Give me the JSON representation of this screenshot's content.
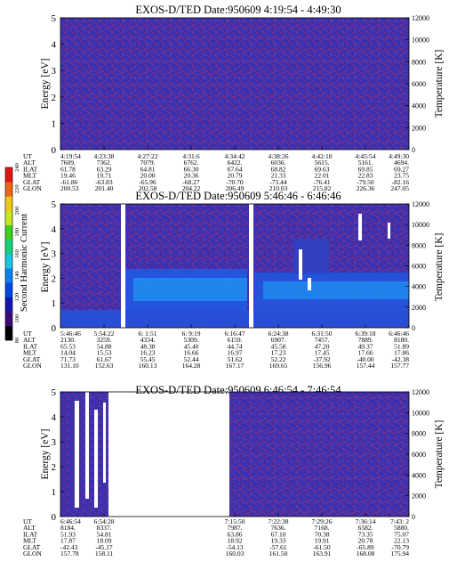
{
  "colorbar": {
    "label": "Second Harmonic Current",
    "ticks": [
      "80",
      "100",
      "120",
      "140",
      "160",
      "180",
      "200",
      "220",
      "240"
    ],
    "colors": [
      "#000000",
      "#3b0a7a",
      "#1414b4",
      "#0046e6",
      "#0a7ff0",
      "#14c8e6",
      "#14d27d",
      "#3cd21e",
      "#c8e61e",
      "#f0c814",
      "#f06414",
      "#e61414"
    ]
  },
  "panels": [
    {
      "title": "EXOS-D/TED   Date:950609  4:19:54 - 4:49:30",
      "ylabel": "Energy [eV]",
      "ylabel_right": "Temperature [K]",
      "y_ticks": [
        "0",
        "1",
        "2",
        "3",
        "4",
        "5"
      ],
      "y_right_ticks": [
        "0",
        "2000",
        "4000",
        "6000",
        "8000",
        "10000",
        "12000"
      ],
      "orbit": {
        "labels": [
          "UT",
          "ALT",
          "ILAT",
          "MLT",
          "GLAT",
          "GLON"
        ],
        "columns": [
          [
            "4:19:54",
            "7609.",
            "61.78",
            "19.46",
            "-61.86",
            "200.53"
          ],
          [
            "4:23:38",
            "7362.",
            "63.29",
            "19.71",
            "-63.83",
            "201.40"
          ],
          [
            "4:27:22",
            "7079.",
            "64.81",
            "20.00",
            "-65.96",
            "202.58"
          ],
          [
            "4:31:6",
            "6762.",
            "66.30",
            "20.36",
            "-68.27",
            "204.22"
          ],
          [
            "4:34:42",
            "6422.",
            "67.64",
            "20.79",
            "-70.70",
            "206.49"
          ],
          [
            "4:38:26",
            "6036.",
            "68.82",
            "21.33",
            "-73.44",
            "210.03"
          ],
          [
            "4:42:10",
            "5615.",
            "69.63",
            "22.01",
            "-76.41",
            "215.82"
          ],
          [
            "4:45:54",
            "5161.",
            "69.85",
            "22.83",
            "-79.50",
            "226.36"
          ],
          [
            "4:49:30",
            "4694.",
            "69.27",
            "23.75",
            "-82.16",
            "247.05"
          ]
        ]
      }
    },
    {
      "title": "EXOS-D/TED   Date:950609  5:46:46 - 6:46:46",
      "ylabel": "Energy [eV]",
      "ylabel_right": "Temperature [K]",
      "y_ticks": [
        "0",
        "1",
        "2",
        "3",
        "4",
        "5"
      ],
      "y_right_ticks": [
        "0",
        "2000",
        "4000",
        "6000",
        "8000",
        "10000",
        "12000"
      ],
      "orbit": {
        "labels": [
          "UT",
          "ALT",
          "ILAT",
          "MLT",
          "GLAT",
          "GLON"
        ],
        "columns": [
          [
            "5:46:46",
            "2130.",
            "65.53",
            "14.04",
            "71.73",
            "131.10"
          ],
          [
            "5:54:22",
            "3259.",
            "54.88",
            "15.53",
            "61.67",
            "152.63"
          ],
          [
            "6: 1:51",
            "4334.",
            "48.38",
            "16.23",
            "55.45",
            "160.13"
          ],
          [
            "6: 9:19",
            "5309.",
            "45.40",
            "16.66",
            "52.44",
            "164.28"
          ],
          [
            "6:16:47",
            "6159.",
            "44.74",
            "16.97",
            "51.62",
            "167.17"
          ],
          [
            "6:24:38",
            "6907.",
            "45.58",
            "17.23",
            "52.22",
            "169.65"
          ],
          [
            "6:31:50",
            "7457.",
            "47.20",
            "17.45",
            "-37.92",
            "156.96"
          ],
          [
            "6:39:18",
            "7889.",
            "49.37",
            "17.66",
            "-40.00",
            "157.44"
          ],
          [
            "6:46:46",
            "8180.",
            "51.89",
            "17.86",
            "-42.38",
            "157.77"
          ]
        ]
      }
    },
    {
      "title": "EXOS-D/TED   Date:950609  6:46:54 - 7:46:54",
      "ylabel": "Energy [eV]",
      "ylabel_right": "Temperature [K]",
      "y_ticks": [
        "0",
        "1",
        "2",
        "3",
        "4",
        "5"
      ],
      "y_right_ticks": [
        "0",
        "2000",
        "4000",
        "6000",
        "8000",
        "10000",
        "12000"
      ],
      "orbit": {
        "labels": [
          "UT",
          "ALT",
          "ILAT",
          "MLT",
          "GLAT",
          "GLON"
        ],
        "columns": [
          [
            "6:46:54",
            "8184.",
            "51.93",
            "17.87",
            "-42.43",
            "157.78"
          ],
          [
            "6:54:28",
            "8337.",
            "54.81",
            "18.09",
            "-45.17",
            "158.11"
          ],
          [
            "",
            "",
            "",
            "",
            "",
            ""
          ],
          [
            "",
            "",
            "",
            "",
            "",
            ""
          ],
          [
            "7:15:50",
            "7987.",
            "63.86",
            "18.92",
            "-54.13",
            "160.03"
          ],
          [
            "7:22:38",
            "7636.",
            "67.10",
            "19.33",
            "-57.61",
            "161.50"
          ],
          [
            "7:29:26",
            "7168.",
            "70.38",
            "19.91",
            "-61.50",
            "163.91"
          ],
          [
            "7:36:14",
            "6582.",
            "73.35",
            "20.78",
            "-65.89",
            "168.08"
          ],
          [
            "7:43: 2",
            "5880.",
            "75.07",
            "22.13",
            "-70.79",
            "175.94"
          ]
        ]
      }
    }
  ],
  "chart_data": [
    {
      "type": "heatmap",
      "title": "EXOS-D/TED   Date:950609  4:19:54 - 4:49:30",
      "ylabel": "Energy [eV]",
      "ylabel_right": "Temperature [K]",
      "ylim": [
        0,
        5
      ],
      "ylim_right": [
        0,
        12000
      ],
      "x_ticks": [
        "4:19:54",
        "4:23:38",
        "4:27:22",
        "4:31:6",
        "4:34:42",
        "4:38:26",
        "4:42:10",
        "4:45:54",
        "4:49:30"
      ],
      "background_level": 105,
      "data_gaps": []
    },
    {
      "type": "heatmap",
      "title": "EXOS-D/TED   Date:950609  5:46:46 - 6:46:46",
      "ylabel": "Energy [eV]",
      "ylabel_right": "Temperature [K]",
      "ylim": [
        0,
        5
      ],
      "ylim_right": [
        0,
        12000
      ],
      "x_ticks": [
        "5:46:46",
        "5:54:22",
        "6: 1:51",
        "6: 9:19",
        "6:16:47",
        "6:24:38",
        "6:31:50",
        "6:39:18",
        "6:46:46"
      ],
      "background_level": 105,
      "enhanced_band": {
        "energy_range": [
          0.5,
          2.6
        ],
        "level": 150,
        "peak_level": 165
      },
      "data_gaps": [
        [
          "5:56:00",
          "5:57:10"
        ],
        [
          "6:23:30",
          "6:24:38"
        ]
      ]
    },
    {
      "type": "heatmap",
      "title": "EXOS-D/TED   Date:950609  6:46:54 - 7:46:54",
      "ylabel": "Energy [eV]",
      "ylabel_right": "Temperature [K]",
      "ylim": [
        0,
        5
      ],
      "ylim_right": [
        0,
        12000
      ],
      "x_ticks": [
        "6:46:54",
        "6:54:28",
        "7:15:50",
        "7:22:38",
        "7:29:26",
        "7:36:14",
        "7:43: 2"
      ],
      "background_level": 105,
      "data_gaps": [
        [
          "6:53:30",
          "7:14:40"
        ]
      ]
    }
  ]
}
